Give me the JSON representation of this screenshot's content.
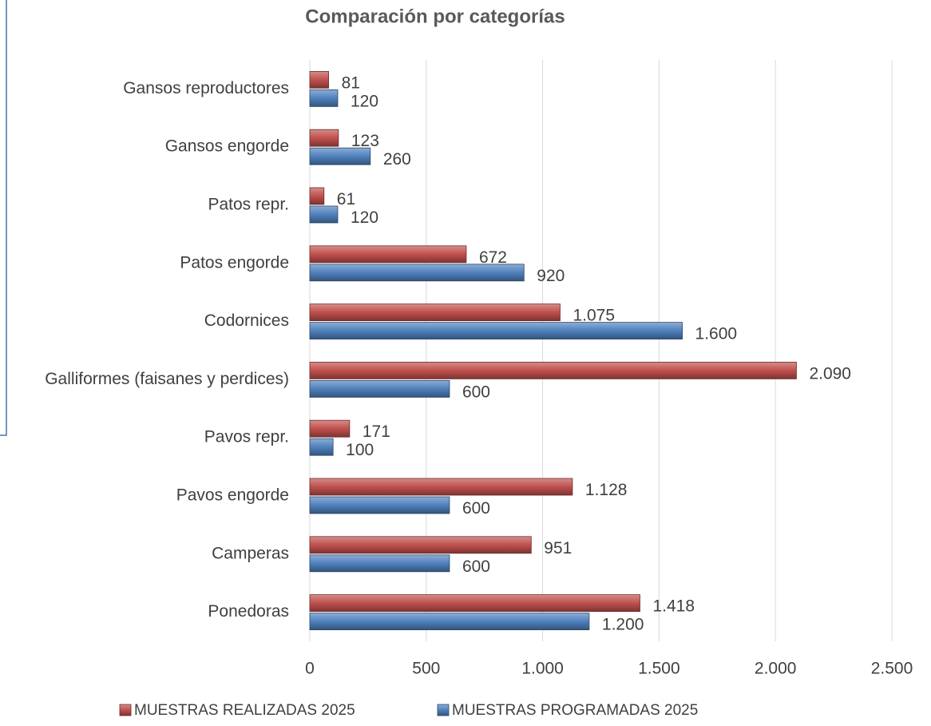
{
  "chart_data": {
    "type": "hbar",
    "title": "Comparación por categorías",
    "categories": [
      "Gansos reproductores",
      "Gansos engorde",
      "Patos repr.",
      "Patos engorde",
      "Codornices",
      "Galliformes (faisanes y perdices)",
      "Pavos repr.",
      "Pavos engorde",
      "Camperas",
      "Ponedoras"
    ],
    "series": [
      {
        "name": "MUESTRAS REALIZADAS 2025",
        "color": "#c0504d",
        "values": [
          81,
          123,
          61,
          672,
          1075,
          2090,
          171,
          1128,
          951,
          1418
        ],
        "value_labels": [
          "81",
          "123",
          "61",
          "672",
          "1.075",
          "2.090",
          "171",
          "1.128",
          "951",
          "1.418"
        ]
      },
      {
        "name": "MUESTRAS PROGRAMADAS 2025",
        "color": "#4f81bd",
        "values": [
          120,
          260,
          120,
          920,
          1600,
          600,
          100,
          600,
          600,
          1200
        ],
        "value_labels": [
          "120",
          "260",
          "120",
          "920",
          "1.600",
          "600",
          "100",
          "600",
          "600",
          "1.200"
        ]
      }
    ],
    "xlim": [
      0,
      2500
    ],
    "xticks": [
      0,
      500,
      {
        "value": 1000,
        "label": "1.000"
      },
      {
        "value": 1500,
        "label": "1.500"
      },
      {
        "value": 2000,
        "label": "2.000"
      },
      {
        "value": 2500,
        "label": "2.500"
      }
    ],
    "grid": true,
    "legend": "bottom"
  }
}
